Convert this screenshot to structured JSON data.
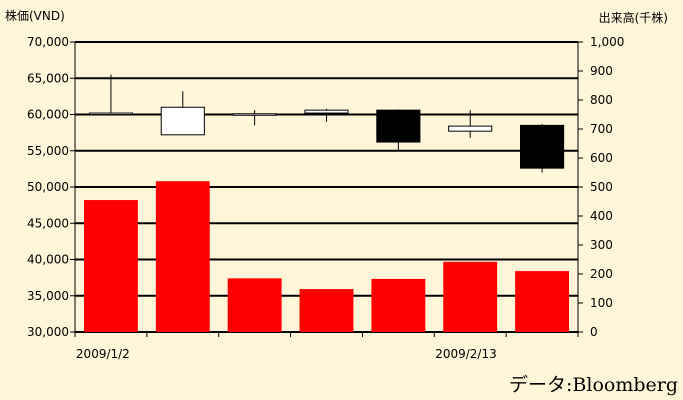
{
  "chart_data": {
    "type": "candlestick+bar",
    "left_axis_title": "株価(VND)",
    "right_axis_title": "出来高(千株)",
    "source_note": "データ:Bloomberg",
    "x_tick_labels": [
      "2009/1/2",
      "2009/2/13"
    ],
    "left_axis": {
      "ticks": [
        "70,000",
        "65,000",
        "60,000",
        "55,000",
        "50,000",
        "45,000",
        "40,000",
        "35,000",
        "30,000"
      ],
      "range": [
        30000,
        70000
      ]
    },
    "right_axis": {
      "ticks": [
        "1,000",
        "900",
        "800",
        "700",
        "600",
        "500",
        "400",
        "300",
        "200",
        "100",
        "0"
      ],
      "range": [
        0,
        1000
      ]
    },
    "grid": true,
    "candles": [
      {
        "open": 60200,
        "close": 60200,
        "high": 65500,
        "low": 60200
      },
      {
        "open": 57200,
        "close": 61000,
        "high": 63200,
        "low": 57200
      },
      {
        "open": 60000,
        "close": 60100,
        "high": 60600,
        "low": 58500
      },
      {
        "open": 60200,
        "close": 60600,
        "high": 60800,
        "low": 59000
      },
      {
        "open": 60600,
        "close": 56200,
        "high": 60700,
        "low": 55000
      },
      {
        "open": 57700,
        "close": 58400,
        "high": 60600,
        "low": 56800
      },
      {
        "open": 58500,
        "close": 52600,
        "high": 58700,
        "low": 52000
      }
    ],
    "volume": [
      455,
      520,
      185,
      148,
      183,
      242,
      210
    ],
    "colors": {
      "volume": "#FF0000",
      "up_candle": "#FFFFFF",
      "down_candle": "#000000",
      "background": "#FFF5D9"
    }
  }
}
